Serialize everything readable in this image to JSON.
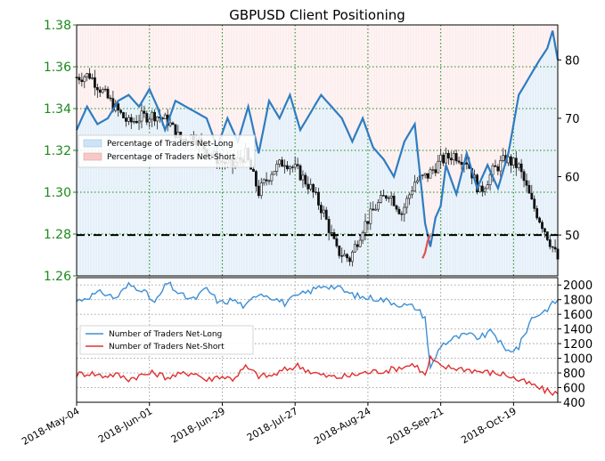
{
  "chart_data": [
    {
      "type": "candlestick+line",
      "title": "GBPUSD Client Positioning",
      "price_axis": {
        "ticks": [
          1.26,
          1.28,
          1.3,
          1.32,
          1.34,
          1.36,
          1.38
        ],
        "range": [
          1.26,
          1.38
        ],
        "color": "#1a8a1a"
      },
      "pct_axis": {
        "ticks": [
          50,
          60,
          70,
          80
        ],
        "range": [
          43,
          86
        ]
      },
      "x_ticks": [
        "2018-May-04",
        "2018-Jun-01",
        "2018-Jun-29",
        "2018-Jul-27",
        "2018-Aug-24",
        "2018-Sep-21",
        "2018-Oct-19"
      ],
      "x_tick_days": [
        0,
        28,
        56,
        84,
        112,
        140,
        168
      ],
      "x_range_days": [
        0,
        185
      ],
      "grid": true,
      "reference_line_pct": 50,
      "legend": {
        "placement": "center-left",
        "entries": [
          "Percentage of Traders Net-Long",
          "Percentage of Traders Net-Short"
        ]
      },
      "net_long_pct_keypoints": {
        "days": [
          0,
          4,
          8,
          12,
          16,
          20,
          24,
          28,
          31,
          34,
          38,
          42,
          46,
          50,
          54,
          58,
          62,
          66,
          70,
          74,
          78,
          82,
          86,
          90,
          94,
          98,
          102,
          106,
          110,
          114,
          118,
          122,
          126,
          130,
          134,
          136,
          138,
          140,
          142,
          146,
          150,
          154,
          158,
          162,
          166,
          170,
          174,
          178,
          181,
          183,
          185
        ],
        "values": [
          68,
          72,
          69,
          70,
          73,
          74,
          72,
          75,
          72,
          68,
          73,
          72,
          71,
          70,
          65,
          70,
          66,
          72,
          64,
          73,
          70,
          74,
          68,
          71,
          74,
          72,
          70,
          66,
          70,
          65,
          63,
          60,
          66,
          69,
          52,
          48,
          53,
          55,
          62,
          57,
          64,
          58,
          62,
          58,
          64,
          74,
          77,
          80,
          82,
          85,
          80
        ]
      },
      "net_short_segment": {
        "days": [
          133,
          134,
          135,
          136
        ],
        "values": [
          46,
          47,
          49,
          50
        ]
      },
      "gbpusd_keypoints": {
        "days": [
          0,
          5,
          10,
          15,
          20,
          25,
          30,
          35,
          40,
          45,
          50,
          55,
          60,
          65,
          70,
          75,
          80,
          85,
          90,
          95,
          100,
          105,
          110,
          115,
          120,
          125,
          130,
          135,
          140,
          145,
          150,
          155,
          160,
          165,
          170,
          175,
          180,
          185
        ],
        "values": [
          1.355,
          1.356,
          1.348,
          1.34,
          1.333,
          1.336,
          1.337,
          1.334,
          1.325,
          1.327,
          1.32,
          1.315,
          1.313,
          1.318,
          1.3,
          1.31,
          1.315,
          1.31,
          1.302,
          1.29,
          1.272,
          1.268,
          1.283,
          1.293,
          1.3,
          1.29,
          1.305,
          1.308,
          1.315,
          1.318,
          1.315,
          1.3,
          1.31,
          1.316,
          1.312,
          1.295,
          1.282,
          1.268
        ]
      }
    },
    {
      "type": "line",
      "y_axis": {
        "ticks": [
          400,
          600,
          800,
          1000,
          1200,
          1400,
          1600,
          1800,
          2000
        ],
        "range": [
          400,
          2100
        ]
      },
      "legend": {
        "placement": "center-left",
        "entries": [
          "Number of Traders Net-Long",
          "Number of Traders Net-Short"
        ]
      },
      "series": [
        {
          "name": "Number of Traders Net-Long",
          "color": "#3d8fd6",
          "days": [
            0,
            5,
            10,
            15,
            20,
            25,
            30,
            35,
            40,
            45,
            50,
            55,
            60,
            65,
            70,
            75,
            80,
            85,
            90,
            95,
            100,
            105,
            110,
            115,
            120,
            125,
            130,
            134,
            136,
            140,
            145,
            150,
            155,
            160,
            165,
            170,
            175,
            180,
            185
          ],
          "values": [
            1780,
            1850,
            1900,
            1820,
            2000,
            1950,
            1750,
            2030,
            1860,
            1800,
            1950,
            1750,
            1800,
            1700,
            1900,
            1840,
            1750,
            1850,
            1920,
            2000,
            1970,
            1880,
            1830,
            1820,
            1780,
            1730,
            1700,
            1560,
            850,
            1180,
            1270,
            1320,
            1280,
            1370,
            1090,
            1150,
            1550,
            1650,
            1800
          ]
        },
        {
          "name": "Number of Traders Net-Short",
          "color": "#e03030",
          "days": [
            0,
            5,
            10,
            15,
            20,
            25,
            30,
            35,
            40,
            45,
            50,
            55,
            60,
            65,
            70,
            75,
            80,
            85,
            90,
            95,
            100,
            105,
            110,
            115,
            120,
            125,
            130,
            134,
            136,
            140,
            145,
            150,
            155,
            160,
            165,
            170,
            175,
            180,
            185
          ],
          "values": [
            780,
            800,
            760,
            780,
            720,
            770,
            800,
            740,
            780,
            810,
            700,
            760,
            720,
            880,
            760,
            760,
            840,
            900,
            820,
            760,
            740,
            760,
            800,
            820,
            840,
            880,
            920,
            760,
            1000,
            880,
            870,
            850,
            820,
            800,
            780,
            700,
            640,
            560,
            520
          ]
        }
      ]
    }
  ]
}
